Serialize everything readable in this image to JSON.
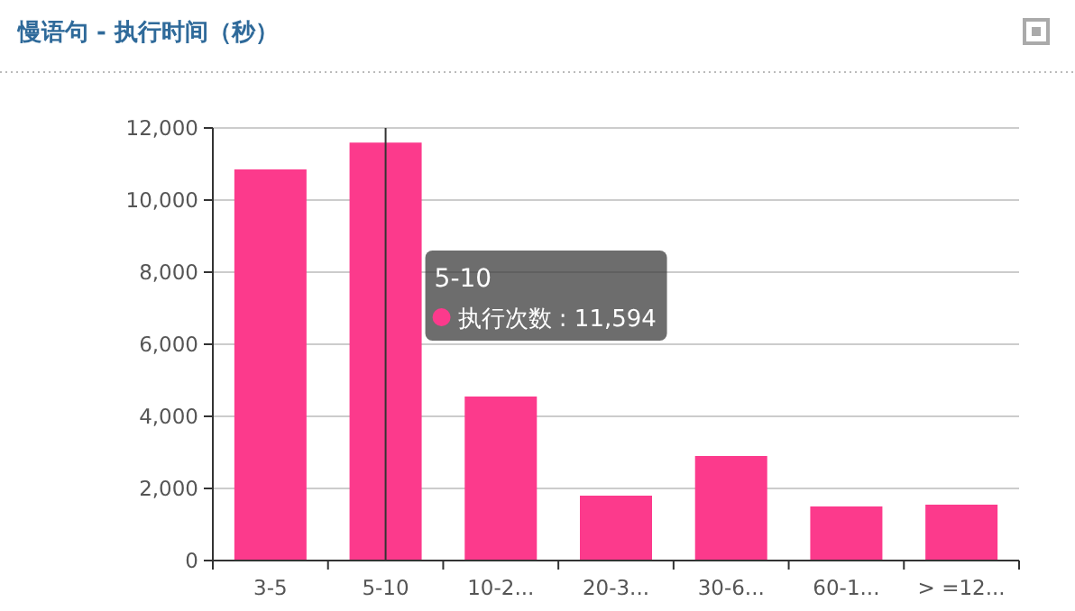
{
  "chart_data": {
    "type": "bar",
    "title": "慢语句 - 执行时间（秒）",
    "categories": [
      "3-5",
      "5-10",
      "10-2...",
      "20-3...",
      "30-6...",
      "60-1...",
      "> =12..."
    ],
    "series": [
      {
        "color": "#fc3a8c",
        "values": [
          10850,
          11594,
          4550,
          1800,
          2900,
          1500,
          1550
        ]
      }
    ],
    "ylim": [
      0,
      12000
    ],
    "yticks": [
      0,
      {
        "value": 2000,
        "label": "2,000"
      },
      {
        "value": 4000,
        "label": "4,000"
      },
      {
        "value": 6000,
        "label": "6,000"
      },
      {
        "value": 8000,
        "label": "8,000"
      },
      {
        "value": 10000,
        "label": "10,000"
      },
      {
        "value": 12000,
        "label": "12,000"
      }
    ],
    "grid": "y",
    "ref_lines": [
      {
        "axis": "x",
        "value": "5-10",
        "color": "#333333"
      }
    ],
    "annotations": [
      "5-10\n执行次数 : 11,594"
    ]
  }
}
